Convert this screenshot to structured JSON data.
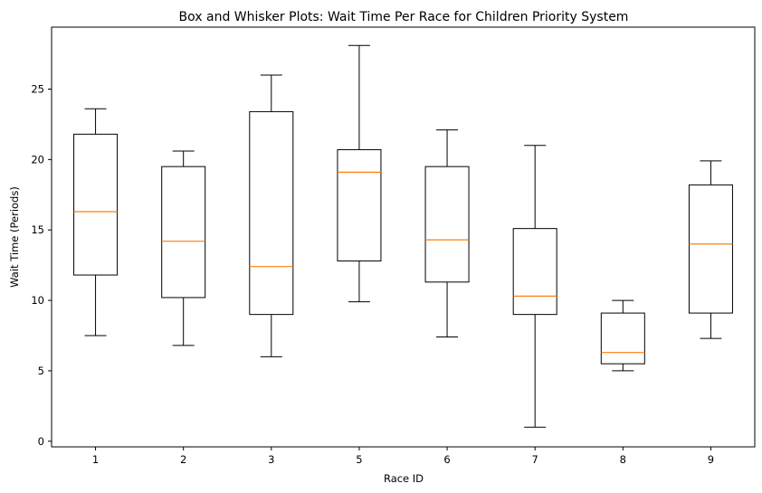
{
  "chart_data": {
    "type": "box",
    "title": "Box and Whisker Plots: Wait Time Per Race for Children Priority System",
    "xlabel": "Race ID",
    "ylabel": "Wait Time (Periods)",
    "ylim": [
      -0.4,
      29.4
    ],
    "yticks": [
      0,
      5,
      10,
      15,
      20,
      25
    ],
    "grid": false,
    "colors": {
      "box": "#000000",
      "median": "#ff7f0e"
    },
    "categories": [
      "1",
      "2",
      "3",
      "5",
      "6",
      "7",
      "8",
      "9"
    ],
    "boxes": [
      {
        "min": 7.5,
        "q1": 11.8,
        "median": 16.3,
        "q3": 21.8,
        "max": 23.6
      },
      {
        "min": 6.8,
        "q1": 10.2,
        "median": 14.2,
        "q3": 19.5,
        "max": 20.6
      },
      {
        "min": 6.0,
        "q1": 9.0,
        "median": 12.4,
        "q3": 23.4,
        "max": 26.0
      },
      {
        "min": 9.9,
        "q1": 12.8,
        "median": 19.1,
        "q3": 20.7,
        "max": 28.1
      },
      {
        "min": 7.4,
        "q1": 11.3,
        "median": 14.3,
        "q3": 19.5,
        "max": 22.1
      },
      {
        "min": 1.0,
        "q1": 9.0,
        "median": 10.3,
        "q3": 15.1,
        "max": 21.0
      },
      {
        "min": 5.0,
        "q1": 5.5,
        "median": 6.3,
        "q3": 9.1,
        "max": 10.0
      },
      {
        "min": 7.3,
        "q1": 9.1,
        "median": 14.0,
        "q3": 18.2,
        "max": 19.9
      }
    ]
  }
}
